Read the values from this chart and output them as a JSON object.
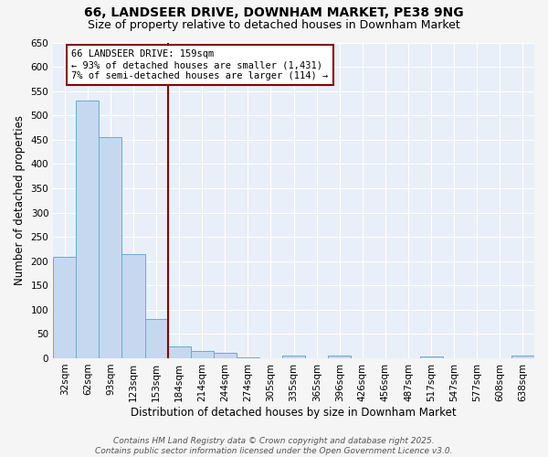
{
  "title": "66, LANDSEER DRIVE, DOWNHAM MARKET, PE38 9NG",
  "subtitle": "Size of property relative to detached houses in Downham Market",
  "xlabel": "Distribution of detached houses by size in Downham Market",
  "ylabel": "Number of detached properties",
  "bar_labels": [
    "32sqm",
    "62sqm",
    "93sqm",
    "123sqm",
    "153sqm",
    "184sqm",
    "214sqm",
    "244sqm",
    "274sqm",
    "305sqm",
    "335sqm",
    "365sqm",
    "396sqm",
    "426sqm",
    "456sqm",
    "487sqm",
    "517sqm",
    "547sqm",
    "577sqm",
    "608sqm",
    "638sqm"
  ],
  "bar_values": [
    208,
    530,
    455,
    214,
    80,
    25,
    15,
    11,
    2,
    0,
    6,
    0,
    5,
    0,
    0,
    0,
    4,
    0,
    0,
    0,
    5
  ],
  "bar_color": "#c5d8f0",
  "bar_edge_color": "#6aaad4",
  "fig_background_color": "#f5f5f5",
  "plot_background_color": "#e8eff8",
  "grid_color": "#ffffff",
  "vline_x": 4.5,
  "vline_color": "#8b0000",
  "annotation_text": "66 LANDSEER DRIVE: 159sqm\n← 93% of detached houses are smaller (1,431)\n7% of semi-detached houses are larger (114) →",
  "annotation_box_facecolor": "#ffffff",
  "annotation_box_edgecolor": "#8b0000",
  "ylim": [
    0,
    650
  ],
  "yticks": [
    0,
    50,
    100,
    150,
    200,
    250,
    300,
    350,
    400,
    450,
    500,
    550,
    600,
    650
  ],
  "footer_line1": "Contains HM Land Registry data © Crown copyright and database right 2025.",
  "footer_line2": "Contains public sector information licensed under the Open Government Licence v3.0.",
  "title_fontsize": 10,
  "subtitle_fontsize": 9,
  "axis_label_fontsize": 8.5,
  "tick_fontsize": 7.5,
  "annotation_fontsize": 7.5,
  "footer_fontsize": 6.5
}
